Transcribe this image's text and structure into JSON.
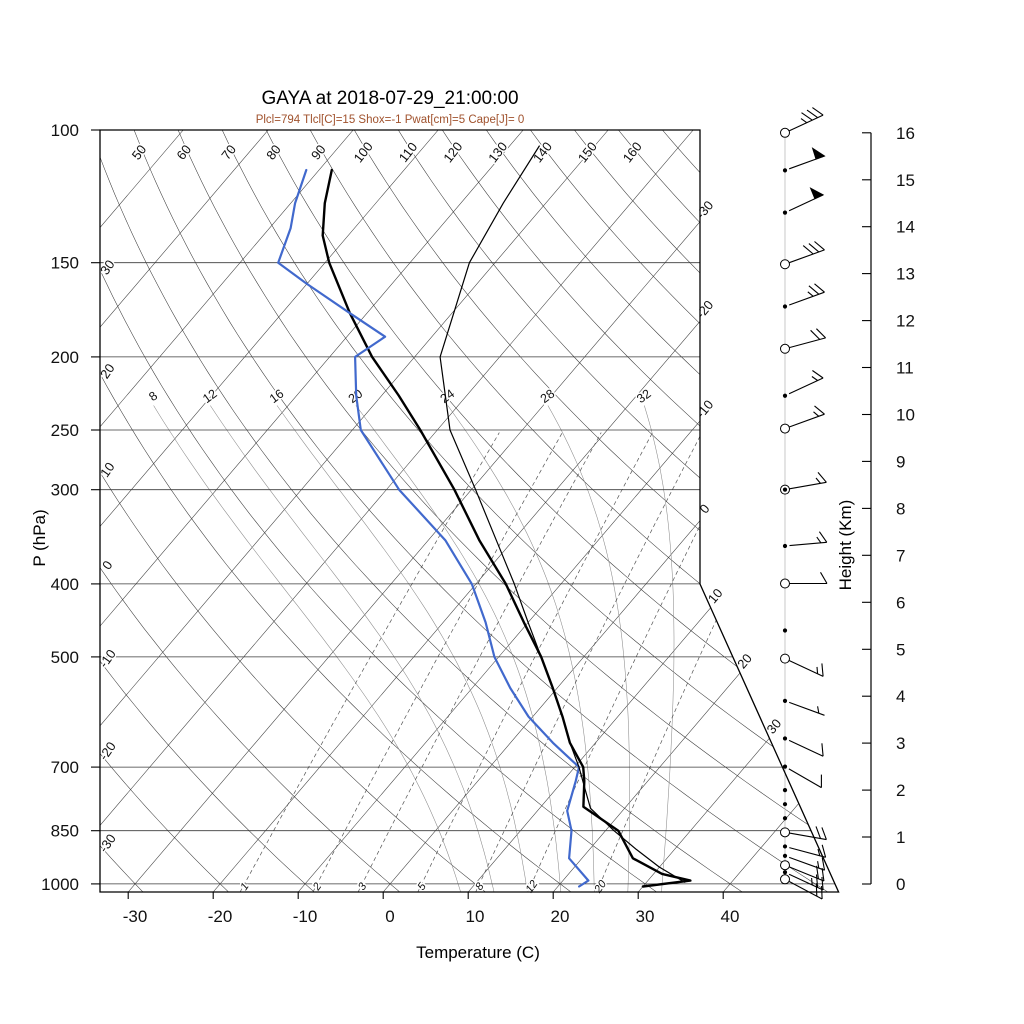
{
  "title": "GAYA at 2018-07-29_21:00:00",
  "info_line": "Plcl=794 Tlcl[C]=15 Shox=-1 Pwat[cm]=5 Cape[J]= 0",
  "axes": {
    "pressure_label": "P (hPa)",
    "pressure_ticks": [
      100,
      150,
      200,
      250,
      300,
      400,
      500,
      700,
      850,
      1000
    ],
    "temperature_label": "Temperature (C)",
    "temperature_ticks": [
      -30,
      -20,
      -10,
      0,
      10,
      20,
      30,
      40
    ],
    "height_label": "Height (Km)",
    "height_ticks": [
      0,
      1,
      2,
      3,
      4,
      5,
      6,
      7,
      8,
      9,
      10,
      11,
      12,
      13,
      14,
      15,
      16
    ]
  },
  "skewt_grid": {
    "isotherm_range": {
      "min": -110,
      "max": 40,
      "step": 10
    },
    "isotherm_right_edge_labels": [
      -30,
      -20,
      -10,
      0,
      10,
      20,
      30
    ],
    "dry_adiabat_range": {
      "min": -30,
      "max": 170,
      "step": 10
    },
    "dry_adiabat_top_labels": [
      50,
      60,
      70,
      80,
      90,
      100,
      110,
      120,
      130,
      140,
      150,
      160
    ],
    "dry_adiabat_left_labels": [
      40,
      30,
      20,
      10,
      0,
      -10,
      -20,
      -30
    ],
    "moist_adiabat_labels": [
      8,
      12,
      16,
      20,
      24,
      28,
      32
    ],
    "mixing_ratio_g_kg": [
      1,
      2,
      3,
      5,
      8,
      12,
      20
    ]
  },
  "chart_data": {
    "type": "line",
    "title": "GAYA at 2018-07-29_21:00:00",
    "xlabel": "Temperature (C)",
    "ylabel": "P (hPa)",
    "y_scale": "log",
    "xlim": [
      -35,
      45
    ],
    "ylim": [
      1025,
      100
    ],
    "series": [
      {
        "name": "temperature",
        "color": "#000000",
        "points": [
          [
            1008,
            30
          ],
          [
            990,
            35
          ],
          [
            970,
            31
          ],
          [
            925,
            26
          ],
          [
            850,
            21.5
          ],
          [
            790,
            15
          ],
          [
            730,
            12.5
          ],
          [
            700,
            11
          ],
          [
            650,
            7
          ],
          [
            600,
            3.5
          ],
          [
            550,
            -0.5
          ],
          [
            500,
            -5
          ],
          [
            450,
            -10.5
          ],
          [
            400,
            -16.5
          ],
          [
            350,
            -24
          ],
          [
            300,
            -32
          ],
          [
            250,
            -42
          ],
          [
            225,
            -48
          ],
          [
            200,
            -55
          ],
          [
            175,
            -62
          ],
          [
            150,
            -69.5
          ],
          [
            138,
            -73
          ],
          [
            125,
            -76
          ],
          [
            113,
            -78.5
          ]
        ]
      },
      {
        "name": "dewpoint",
        "color": "#4169cd",
        "points": [
          [
            1008,
            22.5
          ],
          [
            990,
            23
          ],
          [
            925,
            18.5
          ],
          [
            850,
            16
          ],
          [
            800,
            13.5
          ],
          [
            730,
            11.5
          ],
          [
            700,
            10.5
          ],
          [
            650,
            5
          ],
          [
            600,
            -0.5
          ],
          [
            550,
            -5.5
          ],
          [
            500,
            -10.5
          ],
          [
            450,
            -15
          ],
          [
            400,
            -20.5
          ],
          [
            350,
            -28
          ],
          [
            300,
            -38.5
          ],
          [
            250,
            -49
          ],
          [
            225,
            -53
          ],
          [
            200,
            -57
          ],
          [
            188,
            -55.5
          ],
          [
            175,
            -62
          ],
          [
            160,
            -70
          ],
          [
            150,
            -75.5
          ],
          [
            135,
            -77.5
          ],
          [
            125,
            -79.5
          ],
          [
            113,
            -81.5
          ]
        ]
      },
      {
        "name": "parcel",
        "color": "#000000",
        "points": [
          [
            995,
            34.5
          ],
          [
            950,
            30
          ],
          [
            900,
            25.5
          ],
          [
            850,
            21
          ],
          [
            794,
            16
          ],
          [
            750,
            13.5
          ],
          [
            700,
            10.5
          ],
          [
            650,
            7
          ],
          [
            600,
            3.5
          ],
          [
            550,
            -0.5
          ],
          [
            500,
            -5
          ],
          [
            450,
            -10
          ],
          [
            400,
            -15.5
          ],
          [
            350,
            -22
          ],
          [
            300,
            -29.5
          ],
          [
            250,
            -38.5
          ],
          [
            200,
            -47
          ],
          [
            150,
            -53
          ],
          [
            125,
            -55
          ],
          [
            105,
            -56.5
          ]
        ]
      }
    ],
    "wind_barbs": [
      {
        "km": 16.0,
        "marker": "circle",
        "speed_kt": 35,
        "dir_deg": 65
      },
      {
        "km": 15.2,
        "marker": "dot",
        "speed_kt": 50,
        "dir_deg": 70
      },
      {
        "km": 14.3,
        "marker": "dot",
        "speed_kt": 50,
        "dir_deg": 65
      },
      {
        "km": 13.2,
        "marker": "circle",
        "speed_kt": 30,
        "dir_deg": 70
      },
      {
        "km": 12.3,
        "marker": "dot",
        "speed_kt": 25,
        "dir_deg": 70
      },
      {
        "km": 11.4,
        "marker": "circle",
        "speed_kt": 20,
        "dir_deg": 75
      },
      {
        "km": 10.4,
        "marker": "dot",
        "speed_kt": 15,
        "dir_deg": 65
      },
      {
        "km": 9.7,
        "marker": "circle",
        "speed_kt": 15,
        "dir_deg": 70
      },
      {
        "km": 8.4,
        "marker": "circle-dot",
        "speed_kt": 15,
        "dir_deg": 80
      },
      {
        "km": 7.2,
        "marker": "dot",
        "speed_kt": 15,
        "dir_deg": 85
      },
      {
        "km": 6.4,
        "marker": "circle",
        "speed_kt": 10,
        "dir_deg": 90
      },
      {
        "km": 5.4,
        "marker": "dot",
        "speed_kt": 0,
        "dir_deg": 0
      },
      {
        "km": 4.8,
        "marker": "circle",
        "speed_kt": 15,
        "dir_deg": 115
      },
      {
        "km": 3.9,
        "marker": "dot",
        "speed_kt": 5,
        "dir_deg": 110
      },
      {
        "km": 3.1,
        "marker": "dot",
        "speed_kt": 10,
        "dir_deg": 115
      },
      {
        "km": 2.5,
        "marker": "dot",
        "speed_kt": 10,
        "dir_deg": 120
      },
      {
        "km": 2.0,
        "marker": "dot",
        "speed_kt": 0,
        "dir_deg": 0
      },
      {
        "km": 1.7,
        "marker": "dot",
        "speed_kt": 0,
        "dir_deg": 0
      },
      {
        "km": 1.4,
        "marker": "dot",
        "speed_kt": 0,
        "dir_deg": 0
      },
      {
        "km": 1.1,
        "marker": "circle",
        "speed_kt": 20,
        "dir_deg": 100
      },
      {
        "km": 0.8,
        "marker": "dot",
        "speed_kt": 15,
        "dir_deg": 105
      },
      {
        "km": 0.6,
        "marker": "dot",
        "speed_kt": 15,
        "dir_deg": 110
      },
      {
        "km": 0.4,
        "marker": "circle",
        "speed_kt": 20,
        "dir_deg": 112
      },
      {
        "km": 0.25,
        "marker": "dot",
        "speed_kt": 25,
        "dir_deg": 115
      },
      {
        "km": 0.1,
        "marker": "circle",
        "speed_kt": 20,
        "dir_deg": 118
      }
    ]
  },
  "colors": {
    "temperature_line": "#000000",
    "dewpoint_line": "#4169cd",
    "parcel_line": "#000000",
    "info_text": "#A0522D",
    "grid_major": "#3a3a3a",
    "moist_adiabat": "#8a8a8a",
    "mixing_ratio": "#555555",
    "frame": "#000000"
  }
}
